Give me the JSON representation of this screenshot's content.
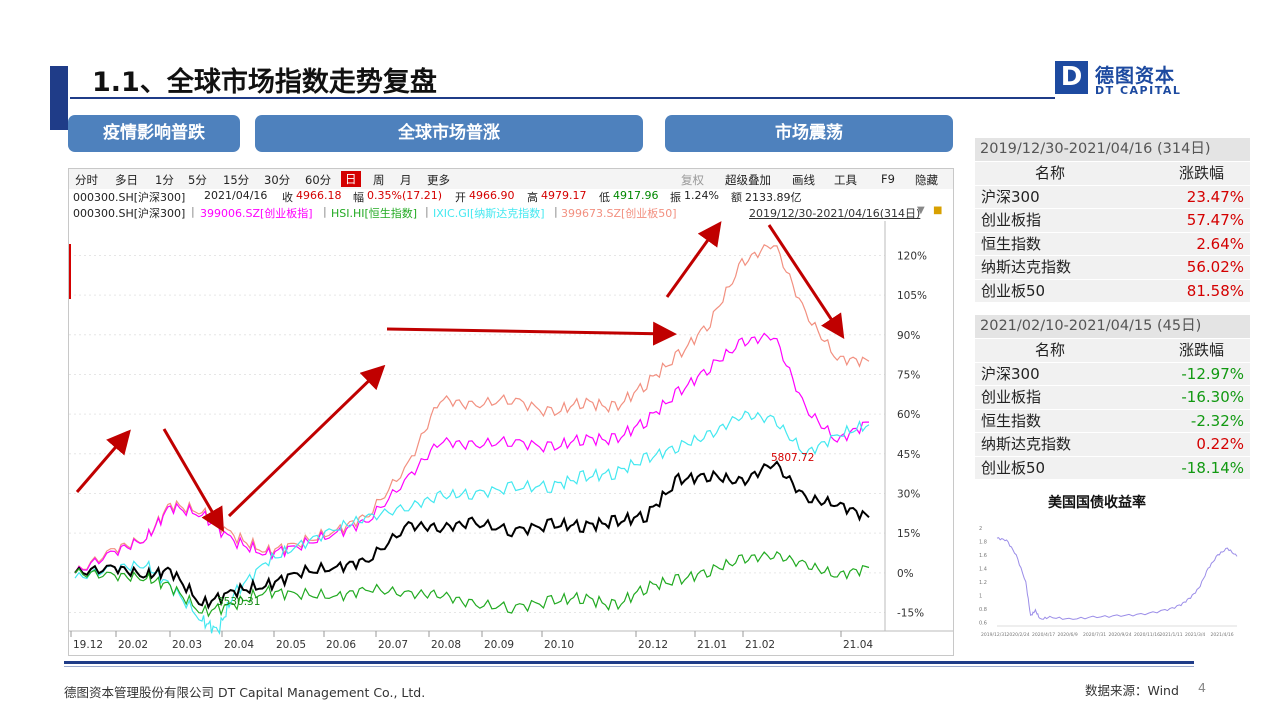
{
  "page": {
    "title": "1.1、全球市场指数走势复盘",
    "logo_cn": "德图资本",
    "logo_en": "DT CAPITAL",
    "logo_mark": "D",
    "footer_left": "德图资本管理股份有限公司 DT Capital Management Co., Ltd.",
    "footer_source": "数据来源：Wind",
    "page_number": "4",
    "brand_color": "#1f3c88"
  },
  "phases": [
    "疫情影响普跌",
    "全球市场普涨",
    "市场震荡"
  ],
  "toolbar": {
    "items": [
      "分时",
      "多日",
      "1分",
      "5分",
      "15分",
      "30分",
      "60分",
      "日",
      "周",
      "月",
      "更多"
    ],
    "selected": "日",
    "right_items": [
      "复权",
      "超级叠加",
      "画线",
      "工具",
      "F9",
      "隐藏"
    ]
  },
  "quote": {
    "code": "000300.SH[沪深300]",
    "date": "2021/04/16",
    "close_label": "收",
    "close": "4966.18",
    "change_label": "幅",
    "change": "0.35%(17.21)",
    "open_label": "开",
    "open": "4966.90",
    "high_label": "高",
    "high": "4979.17",
    "low_label": "低",
    "low": "4917.96",
    "amp_label": "振",
    "amp": "1.24%",
    "amount_label": "额",
    "amount": "2133.89亿"
  },
  "overlay": {
    "main": "000300.SH[沪深300]",
    "s1": "399006.SZ[创业板指]",
    "s2": "HSI.HI[恒生指数]",
    "s3": "IXIC.GI[纳斯达克指数]",
    "s4": "399673.SZ[创业板50]",
    "range": "2019/12/30-2021/04/16(314日)"
  },
  "chart_data": {
    "type": "line",
    "x_ticks": [
      "19.12",
      "20.02",
      "20.03",
      "20.04",
      "20.05",
      "20.06",
      "20.07",
      "20.08",
      "20.09",
      "20.10",
      "20.12",
      "21.01",
      "21.02",
      "21.04"
    ],
    "y_ticks": [
      "120%",
      "105%",
      "90%",
      "75%",
      "60%",
      "45%",
      "30%",
      "15%",
      "0%",
      "-15%"
    ],
    "ylim": [
      -22,
      130
    ],
    "annotations": {
      "high": "5807.72",
      "low": "3530.31"
    },
    "colors": {
      "hs300": "#000000",
      "cyb": "#ff00ff",
      "hsi": "#22aa22",
      "ixic": "#44e8f0",
      "cyb50": "#f29080",
      "arrow": "#c00000"
    },
    "series": [
      {
        "key": "cyb50",
        "x": [
          0,
          5,
          9,
          12,
          16,
          20,
          24,
          28,
          33,
          37,
          42,
          46,
          50,
          55,
          60,
          64,
          68,
          72,
          76,
          80,
          84,
          88,
          92,
          96,
          100
        ],
        "y": [
          0,
          9,
          13,
          26,
          23,
          14,
          8,
          11,
          16,
          22,
          41,
          66,
          63,
          66,
          60,
          65,
          62,
          72,
          82,
          95,
          117,
          125,
          98,
          81,
          80
        ]
      },
      {
        "key": "cyb",
        "x": [
          0,
          5,
          9,
          12,
          16,
          20,
          24,
          28,
          33,
          37,
          42,
          46,
          50,
          55,
          60,
          64,
          68,
          72,
          76,
          80,
          84,
          88,
          92,
          96,
          100
        ],
        "y": [
          0,
          8,
          13,
          25,
          22,
          12,
          7,
          10,
          15,
          20,
          36,
          50,
          48,
          50,
          47,
          51,
          50,
          58,
          68,
          78,
          87,
          90,
          62,
          50,
          57
        ]
      },
      {
        "key": "ixic",
        "x": [
          0,
          5,
          9,
          12,
          16,
          18,
          20,
          24,
          28,
          33,
          37,
          42,
          46,
          50,
          55,
          60,
          64,
          68,
          72,
          76,
          80,
          84,
          88,
          92,
          96,
          100
        ],
        "y": [
          -2,
          2,
          3,
          -5,
          -18,
          -22,
          -8,
          4,
          10,
          17,
          21,
          25,
          29,
          30,
          32,
          33,
          36,
          38,
          43,
          48,
          52,
          60,
          58,
          45,
          52,
          56
        ]
      },
      {
        "key": "hs300",
        "x": [
          0,
          5,
          9,
          12,
          16,
          20,
          24,
          28,
          33,
          37,
          42,
          46,
          50,
          55,
          60,
          64,
          68,
          72,
          76,
          80,
          84,
          88,
          92,
          96,
          100
        ],
        "y": [
          0,
          2,
          -1,
          1,
          -12,
          -7,
          -5,
          0,
          2,
          5,
          18,
          17,
          19,
          16,
          18,
          18,
          19,
          22,
          35,
          37,
          34,
          42,
          28,
          26,
          21
        ]
      },
      {
        "key": "hsi",
        "x": [
          0,
          5,
          9,
          12,
          16,
          20,
          24,
          28,
          33,
          37,
          42,
          46,
          50,
          55,
          60,
          64,
          68,
          72,
          76,
          80,
          84,
          88,
          92,
          96,
          100
        ],
        "y": [
          0,
          -1,
          -2,
          -5,
          -15,
          -12,
          -7,
          -8,
          -9,
          -6,
          -8,
          -8,
          -12,
          -13,
          -11,
          -9,
          -13,
          -5,
          -3,
          1,
          5,
          7,
          3,
          -1,
          2
        ]
      }
    ]
  },
  "table1": {
    "title": "2019/12/30-2021/04/16 (314日)",
    "col_name": "名称",
    "col_change": "涨跌幅",
    "rows": [
      {
        "name": "沪深300",
        "value": "23.47%",
        "dir": "up"
      },
      {
        "name": "创业板指",
        "value": "57.47%",
        "dir": "up"
      },
      {
        "name": "恒生指数",
        "value": "2.64%",
        "dir": "up"
      },
      {
        "name": "纳斯达克指数",
        "value": "56.02%",
        "dir": "up"
      },
      {
        "name": "创业板50",
        "value": "81.58%",
        "dir": "up"
      }
    ]
  },
  "table2": {
    "title": "2021/02/10-2021/04/15 (45日)",
    "col_name": "名称",
    "col_change": "涨跌幅",
    "rows": [
      {
        "name": "沪深300",
        "value": "-12.97%",
        "dir": "down"
      },
      {
        "name": "创业板指",
        "value": "-16.30%",
        "dir": "down"
      },
      {
        "name": "恒生指数",
        "value": "-2.32%",
        "dir": "down"
      },
      {
        "name": "纳斯达克指数",
        "value": "0.22%",
        "dir": "up"
      },
      {
        "name": "创业板50",
        "value": "-18.14%",
        "dir": "down"
      }
    ]
  },
  "treasury": {
    "title": "美国国债收益率",
    "y_ticks": [
      "2",
      "1.8",
      "1.6",
      "1.4",
      "1.2",
      "1",
      "0.8",
      "0.6"
    ],
    "x_ticks": [
      "2019/12/31",
      "2020/2/24",
      "2020/4/17",
      "2020/6/9",
      "2020/7/31",
      "2020/9/24",
      "2020/11/16",
      "2021/1/11",
      "2021/3/4",
      "2021/4/16"
    ],
    "chart_data": {
      "type": "line",
      "x": [
        0,
        4,
        8,
        12,
        14,
        16,
        18,
        22,
        30,
        40,
        50,
        60,
        70,
        76,
        80,
        84,
        88,
        92,
        96,
        100
      ],
      "y": [
        1.85,
        1.82,
        1.6,
        1.2,
        0.7,
        0.78,
        0.65,
        0.68,
        0.65,
        0.68,
        0.7,
        0.72,
        0.78,
        0.85,
        0.95,
        1.1,
        1.4,
        1.6,
        1.7,
        1.58
      ],
      "ylim": [
        0.55,
        2.0
      ]
    }
  }
}
